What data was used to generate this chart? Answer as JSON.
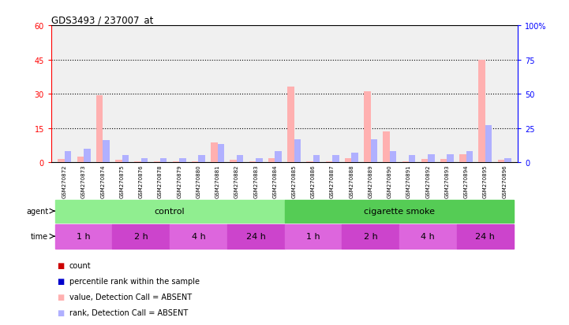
{
  "title": "GDS3493 / 237007_at",
  "samples": [
    "GSM270872",
    "GSM270873",
    "GSM270874",
    "GSM270875",
    "GSM270876",
    "GSM270878",
    "GSM270879",
    "GSM270880",
    "GSM270881",
    "GSM270882",
    "GSM270883",
    "GSM270884",
    "GSM270885",
    "GSM270886",
    "GSM270887",
    "GSM270888",
    "GSM270889",
    "GSM270890",
    "GSM270891",
    "GSM270892",
    "GSM270893",
    "GSM270894",
    "GSM270895",
    "GSM270896"
  ],
  "absent_count": [
    1.5,
    2.5,
    29.5,
    1.0,
    0.3,
    0.3,
    0.3,
    0.5,
    8.5,
    1.2,
    0.5,
    1.8,
    33.0,
    0.5,
    0.5,
    1.8,
    31.0,
    13.5,
    0.5,
    1.5,
    1.5,
    3.5,
    45.0,
    1.0
  ],
  "absent_rank": [
    8.0,
    10.0,
    16.0,
    5.0,
    3.0,
    3.0,
    3.0,
    5.0,
    13.0,
    5.0,
    3.0,
    8.0,
    16.5,
    5.0,
    5.0,
    7.0,
    16.5,
    8.0,
    5.0,
    6.0,
    6.0,
    8.0,
    27.0,
    3.0
  ],
  "ylim_left": [
    0,
    60
  ],
  "ylim_right": [
    0,
    100
  ],
  "yticks_left": [
    0,
    15,
    30,
    45,
    60
  ],
  "yticks_right": [
    0,
    25,
    50,
    75,
    100
  ],
  "agent_groups": [
    {
      "label": "control",
      "start": 0,
      "end": 12,
      "color": "#90EE90"
    },
    {
      "label": "cigarette smoke",
      "start": 12,
      "end": 24,
      "color": "#55CC55"
    }
  ],
  "time_groups": [
    {
      "label": "1 h",
      "start": 0,
      "end": 3,
      "color": "#DD66DD"
    },
    {
      "label": "2 h",
      "start": 3,
      "end": 6,
      "color": "#CC44CC"
    },
    {
      "label": "4 h",
      "start": 6,
      "end": 9,
      "color": "#DD66DD"
    },
    {
      "label": "24 h",
      "start": 9,
      "end": 12,
      "color": "#CC44CC"
    },
    {
      "label": "1 h",
      "start": 12,
      "end": 15,
      "color": "#DD66DD"
    },
    {
      "label": "2 h",
      "start": 15,
      "end": 18,
      "color": "#CC44CC"
    },
    {
      "label": "4 h",
      "start": 18,
      "end": 21,
      "color": "#DD66DD"
    },
    {
      "label": "24 h",
      "start": 21,
      "end": 24,
      "color": "#CC44CC"
    }
  ],
  "bar_width": 0.35,
  "absent_count_color": "#FFB0B0",
  "absent_rank_color": "#B0B0FF",
  "bg_color": "#FFFFFF",
  "plot_bg": "#F0F0F0",
  "legend_items": [
    {
      "color": "#CC0000",
      "marker": "s",
      "label": "count"
    },
    {
      "color": "#0000CC",
      "marker": "s",
      "label": "percentile rank within the sample"
    },
    {
      "color": "#FFB0B0",
      "marker": "s",
      "label": "value, Detection Call = ABSENT"
    },
    {
      "color": "#B0B0FF",
      "marker": "s",
      "label": "rank, Detection Call = ABSENT"
    }
  ]
}
